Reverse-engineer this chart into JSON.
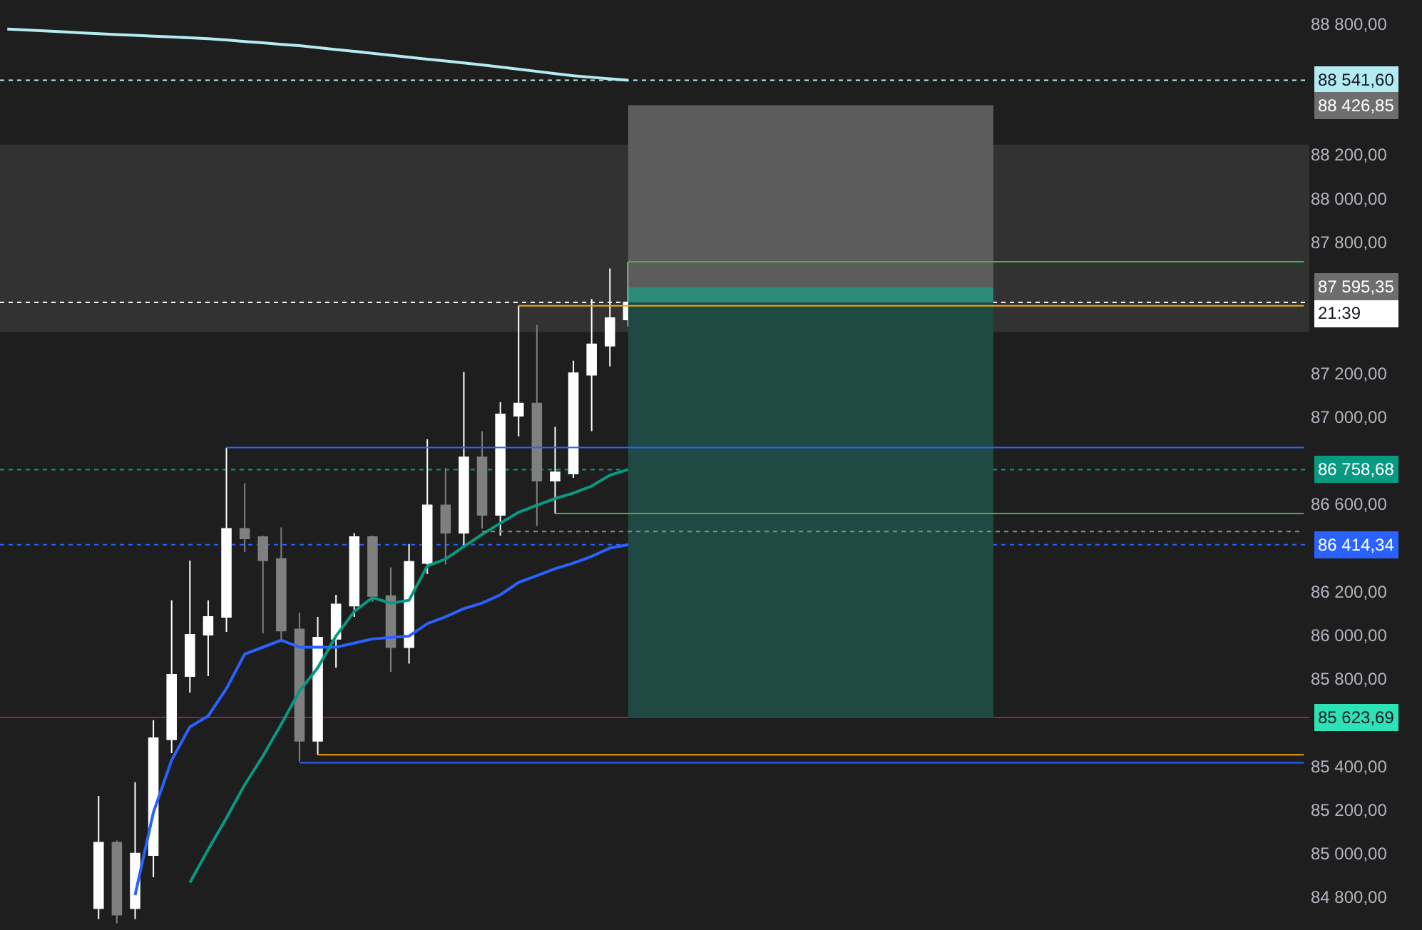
{
  "chart_data": {
    "type": "candlestick",
    "categories": [
      null,
      null,
      null,
      null,
      null,
      null,
      null,
      null,
      null,
      null,
      null,
      null,
      null,
      null,
      null,
      null,
      null,
      null,
      null,
      null,
      null,
      null,
      null,
      null,
      null,
      null,
      null,
      null,
      null,
      null,
      null,
      null,
      null,
      null,
      null,
      null,
      null,
      null,
      null,
      null,
      null,
      null,
      null,
      null,
      null,
      null,
      null,
      null,
      null,
      null,
      null,
      null,
      null,
      null,
      null,
      null,
      null,
      null,
      null,
      null,
      null,
      null,
      null,
      null,
      null,
      null,
      null,
      null,
      null,
      null,
      null,
      null
    ],
    "ohlc": [
      null,
      null,
      null,
      null,
      null,
      [
        84750,
        85264,
        84700,
        85050
      ],
      [
        85050,
        85060,
        84680,
        84720
      ],
      [
        84750,
        85327,
        84700,
        85000
      ],
      [
        84993,
        85611,
        84892,
        85529
      ],
      [
        85523,
        86160,
        85460,
        85819
      ],
      [
        85813,
        86342,
        85737,
        86002
      ],
      [
        86002,
        86160,
        85813,
        86084
      ],
      [
        86084,
        86859,
        86015,
        86487
      ],
      [
        86487,
        86696,
        86380,
        86443
      ],
      [
        86450,
        86455,
        86009,
        86343
      ],
      [
        86349,
        86494,
        85971,
        86021
      ],
      [
        86027,
        86103,
        85422,
        85516
      ],
      [
        85516,
        86084,
        85453,
        85989
      ],
      [
        85983,
        86185,
        85851,
        86141
      ],
      [
        86135,
        86468,
        86084,
        86450
      ],
      [
        86450,
        86456,
        86153,
        86179
      ],
      [
        86179,
        86311,
        85832,
        85945
      ],
      [
        85945,
        86418,
        85870,
        86336
      ],
      [
        86330,
        86897,
        86280,
        86595
      ],
      [
        86595,
        86765,
        86324,
        86469
      ],
      [
        86469,
        87206,
        86412,
        86815
      ],
      [
        86815,
        86935,
        86488,
        86551
      ],
      [
        86551,
        87068,
        86456,
        87011
      ],
      [
        87005,
        87509,
        86910,
        87061
      ],
      [
        87061,
        87421,
        86500,
        86708
      ],
      [
        86708,
        86954,
        86557,
        86746
      ],
      [
        86740,
        87257,
        86721,
        87200
      ],
      [
        87193,
        87540,
        86935,
        87332
      ],
      [
        87326,
        87679,
        87231,
        87452
      ],
      [
        87446,
        87710,
        87414,
        87523.99
      ],
      null,
      null,
      null,
      null,
      null,
      null,
      null,
      null,
      null,
      null,
      null,
      null,
      null,
      null,
      null,
      null,
      null,
      null,
      null,
      null,
      null,
      null,
      null,
      null,
      null,
      null,
      null,
      null,
      null,
      null,
      null,
      null,
      null,
      null,
      null,
      null,
      null
    ],
    "colors": [
      null,
      null,
      null,
      null,
      null,
      "#ffffff",
      "#7f7f7f",
      "#ffffff",
      "#ffffff",
      "#ffffff",
      "#ffffff",
      "#ffffff",
      "#ffffff",
      "#7f7f7f",
      "#7f7f7f",
      "#7f7f7f",
      "#7f7f7f",
      "#ffffff",
      "#ffffff",
      "#ffffff",
      "#7f7f7f",
      "#7f7f7f",
      "#ffffff",
      "#ffffff",
      "#7f7f7f",
      "#ffffff",
      "#7f7f7f",
      "#ffffff",
      "#ffffff",
      "#7f7f7f",
      "#ffffff",
      "#ffffff",
      "#ffffff",
      "#ffffff",
      "#ffffff",
      null,
      null,
      null,
      null,
      null,
      null,
      null,
      null,
      null,
      null,
      null,
      null,
      null,
      null,
      null,
      null,
      null,
      null,
      null,
      null,
      null,
      null,
      null,
      null,
      null,
      null,
      null,
      null,
      null,
      null,
      null,
      null,
      null,
      null,
      null,
      null,
      null
    ],
    "series": [
      {
        "type": "line",
        "color": "#1f4a44",
        "values": [
          null,
          null,
          null,
          null,
          null,
          null,
          null,
          null,
          null,
          null,
          null,
          null,
          null,
          null,
          null,
          null,
          null,
          null,
          null,
          null,
          null,
          null,
          null,
          null,
          null,
          null,
          null,
          null,
          null,
          null,
          null,
          null,
          null,
          null,
          85623.69,
          85623.69,
          85623.69,
          85623.69,
          85623.69,
          85623.69,
          85623.69,
          85623.69,
          85623.69,
          85623.69,
          85623.69,
          85623.69,
          85623.69,
          85623.69,
          85623.69,
          85623.69,
          85623.69,
          85623.69,
          85623.69,
          85623.69,
          85623.69,
          null,
          null,
          null,
          null,
          null,
          null,
          null,
          null,
          null,
          null,
          null,
          null,
          null,
          null,
          null,
          null,
          null
        ]
      },
      {
        "type": "area",
        "color": "#1f4a44",
        "values": [
          null,
          null,
          null,
          null,
          null,
          null,
          null,
          null,
          null,
          null,
          null,
          null,
          null,
          null,
          null,
          null,
          null,
          null,
          null,
          null,
          null,
          null,
          null,
          null,
          null,
          null,
          null,
          null,
          null,
          null,
          null,
          null,
          null,
          null,
          87523.99,
          87523.99,
          87523.99,
          87523.99,
          87523.99,
          87523.99,
          87523.99,
          87523.99,
          87523.99,
          87523.99,
          87523.99,
          87523.99,
          87523.99,
          87523.99,
          87523.99,
          87523.99,
          87523.99,
          87523.99,
          87523.99,
          87523.99,
          87523.99,
          null,
          null,
          null,
          null,
          null,
          null,
          null,
          null,
          null,
          null,
          null,
          null,
          null,
          null,
          null,
          null,
          null
        ]
      },
      {
        "type": "area",
        "color": "#2b8a78",
        "values": [
          null,
          null,
          null,
          null,
          null,
          null,
          null,
          null,
          null,
          null,
          null,
          null,
          null,
          null,
          null,
          null,
          null,
          null,
          null,
          null,
          null,
          null,
          null,
          null,
          null,
          null,
          null,
          null,
          null,
          null,
          null,
          null,
          null,
          null,
          87595.35,
          87595.35,
          87595.35,
          87595.35,
          87595.35,
          87595.35,
          87595.35,
          87595.35,
          87595.35,
          87595.35,
          87595.35,
          87595.35,
          87595.35,
          87595.35,
          87595.35,
          87595.35,
          87595.35,
          87595.35,
          87595.35,
          87595.35,
          87595.35,
          null,
          null,
          null,
          null,
          null,
          null,
          null,
          null,
          null,
          null,
          null,
          null,
          null,
          null,
          null,
          null,
          null
        ]
      },
      {
        "type": "area",
        "color": "#5c5c5c",
        "values": [
          null,
          null,
          null,
          null,
          null,
          null,
          null,
          null,
          null,
          null,
          null,
          null,
          null,
          null,
          null,
          null,
          null,
          null,
          null,
          null,
          null,
          null,
          null,
          null,
          null,
          null,
          null,
          null,
          null,
          null,
          null,
          null,
          null,
          null,
          88426.85,
          88426.85,
          88426.85,
          88426.85,
          88426.85,
          88426.85,
          88426.85,
          88426.85,
          88426.85,
          88426.85,
          88426.85,
          88426.85,
          88426.85,
          88426.85,
          88426.85,
          88426.85,
          88426.85,
          88426.85,
          88426.85,
          88426.85,
          88426.85,
          null,
          null,
          null,
          null,
          null,
          null,
          null,
          null,
          null,
          null,
          null,
          null,
          null,
          null,
          null,
          null,
          null
        ]
      },
      {
        "type": "line",
        "color": "#b2ebf2",
        "values": [
          88776,
          88772,
          88768,
          88764,
          88759,
          88755,
          88751,
          88747,
          88743,
          88740,
          88736,
          88732,
          88726,
          88719,
          88713,
          88706,
          88700,
          88691,
          88682,
          88674,
          88665,
          88656,
          88647,
          88638,
          88630,
          88621,
          88612,
          88602,
          88592,
          88582,
          88572,
          88562,
          88555,
          88548,
          88541.6,
          null,
          null,
          null,
          null,
          null,
          null,
          null,
          null,
          null,
          null,
          null,
          null,
          null,
          null,
          null,
          null,
          null,
          null,
          null,
          null,
          null,
          null,
          null,
          null,
          null,
          null,
          null,
          null,
          null,
          null,
          null,
          null,
          null,
          null,
          null,
          null,
          null
        ]
      },
      {
        "type": "line",
        "color": "#2962ff",
        "values": [
          null,
          null,
          null,
          null,
          null,
          null,
          null,
          84810,
          85189,
          85428,
          85580,
          85630,
          85756,
          85914,
          85945,
          85977,
          85945,
          85945,
          85945,
          85964,
          85983,
          85990,
          85996,
          86053,
          86084,
          86122,
          86147,
          86185,
          86242,
          86273,
          86305,
          86330,
          86361,
          86399,
          86414.34,
          null,
          null,
          null,
          null,
          null,
          null,
          null,
          null,
          null,
          null,
          null,
          null,
          null,
          null,
          null,
          null,
          null,
          null,
          null,
          null,
          null,
          null,
          null,
          null,
          null,
          null,
          null,
          null,
          null,
          null,
          null,
          null,
          null,
          null,
          null,
          null,
          null
        ]
      },
      {
        "type": "line",
        "color": "#089981",
        "values": [
          null,
          null,
          null,
          null,
          null,
          null,
          null,
          null,
          null,
          null,
          84867,
          85018,
          85163,
          85315,
          85447,
          85592,
          85744,
          85851,
          85996,
          86109,
          86172,
          86147,
          86160,
          86317,
          86349,
          86406,
          86462,
          86513,
          86563,
          86595,
          86626,
          86651,
          86683,
          86733,
          86758.68,
          null,
          null,
          null,
          null,
          null,
          null,
          null,
          null,
          null,
          null,
          null,
          null,
          null,
          null,
          null,
          null,
          null,
          null,
          null,
          null,
          null,
          null,
          null,
          null,
          null,
          null,
          null,
          null,
          null,
          null,
          null,
          null,
          null,
          null,
          null,
          null,
          null
        ]
      },
      {
        "type": "line",
        "color": "#2962ff",
        "values": [
          null,
          null,
          null,
          null,
          null,
          null,
          null,
          null,
          null,
          null,
          null,
          null,
          86859.6,
          86859.6,
          86859.6,
          86859.6,
          86859.6,
          86859.6,
          86859.6,
          86859.6,
          86859.6,
          86859.6,
          86859.6,
          86859.6,
          86859.6,
          86859.6,
          86859.6,
          86859.6,
          86859.6,
          86859.6,
          86859.6,
          86859.6,
          86859.6,
          86859.6,
          86859.6,
          86859.6,
          86859.6,
          86859.6,
          86859.6,
          86859.6,
          86859.6,
          86859.6,
          86859.6,
          86859.6,
          86859.6,
          86859.6,
          86859.6,
          86859.6,
          86859.6,
          86859.6,
          86859.6,
          86859.6,
          86859.6,
          86859.6,
          86859.6,
          86859.6,
          86859.6,
          86859.6,
          86859.6,
          86859.6,
          86859.6,
          86859.6,
          86859.6,
          86859.6,
          86859.6,
          86859.6,
          86859.6,
          86859.6,
          86859.6,
          86859.6,
          86859.6,
          86859.6
        ]
      },
      {
        "type": "line",
        "color": "#4caf50",
        "values": [
          null,
          null,
          null,
          null,
          null,
          null,
          null,
          null,
          null,
          null,
          null,
          null,
          null,
          null,
          null,
          null,
          null,
          null,
          null,
          null,
          null,
          null,
          null,
          null,
          null,
          null,
          null,
          null,
          null,
          null,
          null,
          null,
          null,
          null,
          87710,
          87710,
          87710,
          87710,
          87710,
          87710,
          87710,
          87710,
          87710,
          87710,
          87710,
          87710,
          87710,
          87710,
          87710,
          87710,
          87710,
          87710,
          87710,
          87710,
          87710,
          87710,
          87710,
          87710,
          87710,
          87710,
          87710,
          87710,
          87710,
          87710,
          87710,
          87710,
          87710,
          87710,
          87710,
          87710,
          87710,
          87710
        ]
      },
      {
        "type": "line",
        "color": "#f7a600",
        "values": [
          null,
          null,
          null,
          null,
          null,
          null,
          null,
          null,
          null,
          null,
          null,
          null,
          null,
          null,
          null,
          null,
          null,
          null,
          null,
          null,
          null,
          null,
          null,
          null,
          null,
          null,
          null,
          null,
          87509,
          87509,
          87509,
          87509,
          87509,
          87509,
          87509,
          87509,
          87509,
          87509,
          87509,
          87509,
          87509,
          87509,
          87509,
          87509,
          87509,
          87509,
          87509,
          87509,
          87509,
          87509,
          87509,
          87509,
          87509,
          87509,
          87509,
          87509,
          87509,
          87509,
          87509,
          87509,
          87509,
          87509,
          87509,
          87509,
          87509,
          87509,
          87509,
          87509,
          87509,
          87509,
          87509,
          87509
        ]
      },
      {
        "type": "line",
        "color": "#4caf50",
        "values": [
          null,
          null,
          null,
          null,
          null,
          null,
          null,
          null,
          null,
          null,
          null,
          null,
          null,
          null,
          null,
          null,
          null,
          null,
          null,
          null,
          null,
          null,
          null,
          null,
          null,
          null,
          null,
          null,
          null,
          null,
          86557,
          86557,
          86557,
          86557,
          86557,
          86557,
          86557,
          86557,
          86557,
          86557,
          86557,
          86557,
          86557,
          86557,
          86557,
          86557,
          86557,
          86557,
          86557,
          86557,
          86557,
          86557,
          86557,
          86557,
          86557,
          86557,
          86557,
          86557,
          86557,
          86557,
          86557,
          86557,
          86557,
          86557,
          86557,
          86557,
          86557,
          86557,
          86557,
          86557,
          86557,
          86557
        ]
      },
      {
        "type": "line",
        "color": "#8a8a8a",
        "line_style": "dotted",
        "values": [
          null,
          null,
          null,
          null,
          null,
          null,
          null,
          null,
          null,
          null,
          null,
          null,
          null,
          null,
          null,
          null,
          null,
          null,
          null,
          null,
          null,
          null,
          null,
          null,
          null,
          null,
          86475,
          86475,
          86475,
          86475,
          86475,
          86475,
          86475,
          86475,
          86475,
          86475,
          86475,
          86475,
          86475,
          86475,
          86475,
          86475,
          86475,
          86475,
          86475,
          86475,
          86475,
          86475,
          86475,
          86475,
          86475,
          86475,
          86475,
          86475,
          86475,
          86475,
          86475,
          86475,
          86475,
          86475,
          86475,
          86475,
          86475,
          86475,
          86475,
          86475,
          86475,
          86475,
          86475,
          86475,
          86475,
          86475
        ]
      },
      {
        "type": "line",
        "color": "#f7a600",
        "values": [
          null,
          null,
          null,
          null,
          null,
          null,
          null,
          null,
          null,
          null,
          null,
          null,
          null,
          null,
          null,
          null,
          null,
          85453,
          85453,
          85453,
          85453,
          85453,
          85453,
          85453,
          85453,
          85453,
          85453,
          85453,
          85453,
          85453,
          85453,
          85453,
          85453,
          85453,
          85453,
          85453,
          85453,
          85453,
          85453,
          85453,
          85453,
          85453,
          85453,
          85453,
          85453,
          85453,
          85453,
          85453,
          85453,
          85453,
          85453,
          85453,
          85453,
          85453,
          85453,
          85453,
          85453,
          85453,
          85453,
          85453,
          85453,
          85453,
          85453,
          85453,
          85453,
          85453,
          85453,
          85453,
          85453,
          85453,
          85453,
          85453
        ]
      },
      {
        "type": "line",
        "color": "#2962ff",
        "values": [
          null,
          null,
          null,
          null,
          null,
          null,
          null,
          null,
          null,
          null,
          null,
          null,
          null,
          null,
          null,
          null,
          85416,
          85416,
          85416,
          85416,
          85416,
          85416,
          85416,
          85416,
          85416,
          85416,
          85416,
          85416,
          85416,
          85416,
          85416,
          85416,
          85416,
          85416,
          85416,
          85416,
          85416,
          85416,
          85416,
          85416,
          85416,
          85416,
          85416,
          85416,
          85416,
          85416,
          85416,
          85416,
          85416,
          85416,
          85416,
          85416,
          85416,
          85416,
          85416,
          85416,
          85416,
          85416,
          85416,
          85416,
          85416,
          85416,
          85416,
          85416,
          85416,
          85416,
          85416,
          85416,
          85416,
          85416,
          85416,
          85416
        ]
      }
    ],
    "bands": [
      {
        "axis": "y",
        "from": 87389,
        "to": 88247,
        "color": "#323232"
      }
    ],
    "ref_lines": [
      {
        "axis": "y",
        "value": 88541.6,
        "label": "88 541,60",
        "color": "#b2ebf2",
        "line_style": "dotted"
      },
      {
        "axis": "y",
        "value": 87523.99,
        "label": "87 523,99\n21:39",
        "color": "#ffffff",
        "line_style": "dotted"
      },
      {
        "axis": "y",
        "value": 86758.68,
        "label": "86 758,68",
        "color": "#089981",
        "line_style": "dotted"
      },
      {
        "axis": "y",
        "value": 86414.34,
        "label": "86 414,34",
        "color": "#2962ff",
        "line_style": "dotted"
      },
      {
        "axis": "y",
        "value": 85623.69,
        "color": "#9c1f47",
        "line_style": "solid"
      }
    ],
    "annotations": [
      "88 426,85",
      "87 595,35",
      "85 623,69"
    ],
    "ylim": [
      84650,
      88909
    ],
    "yticks": [
      {
        "value": 84800,
        "label": "84 800,00"
      },
      {
        "value": 85000,
        "label": "85 000,00"
      },
      {
        "value": 85200,
        "label": "85 200,00"
      },
      {
        "value": 85400,
        "label": "85 400,00"
      },
      {
        "value": 85800,
        "label": "85 800,00"
      },
      {
        "value": 86000,
        "label": "86 000,00"
      },
      {
        "value": 86200,
        "label": "86 200,00"
      },
      {
        "value": 86600,
        "label": "86 600,00"
      },
      {
        "value": 87000,
        "label": "87 000,00"
      },
      {
        "value": 87200,
        "label": "87 200,00"
      },
      {
        "value": 87800,
        "label": "87 800,00"
      },
      {
        "value": 88000,
        "label": "88 000,00"
      },
      {
        "value": 88200,
        "label": "88 200,00"
      },
      {
        "value": 88800,
        "label": "88 800,00"
      }
    ],
    "tick_labels": "y"
  }
}
